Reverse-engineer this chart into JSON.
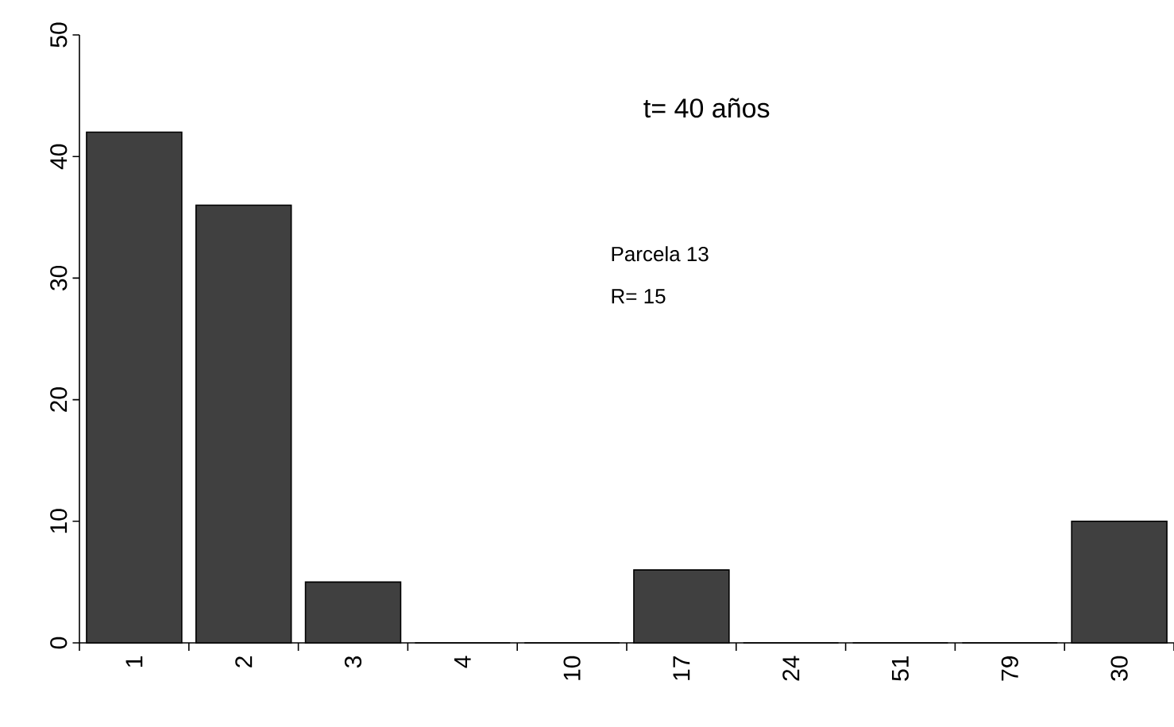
{
  "chart_data": {
    "type": "bar",
    "categories": [
      "1",
      "2",
      "3",
      "4",
      "10",
      "17",
      "24",
      "51",
      "79",
      "30"
    ],
    "values": [
      42,
      36,
      5,
      0,
      0,
      6,
      0,
      0,
      0,
      10
    ],
    "color": "#404040",
    "ylim": [
      0,
      50
    ],
    "yticks": [
      0,
      10,
      20,
      30,
      40,
      50
    ],
    "annotations": [
      "t= 40 años",
      "Parcela 13",
      "R= 15"
    ]
  }
}
